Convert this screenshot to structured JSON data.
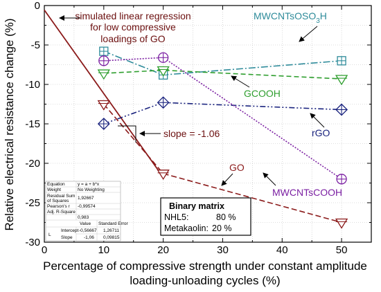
{
  "chart_data": {
    "type": "line",
    "xlabel_line1": "Percentage of compressive strength under constant amplitude",
    "xlabel_line2": "loading-unloading cycles (%)",
    "ylabel": "Relative electrical resistance change (%)",
    "xlim": [
      0,
      55
    ],
    "ylim": [
      -30,
      0
    ],
    "xticks": [
      0,
      10,
      20,
      30,
      40,
      50
    ],
    "yticks": [
      -30,
      -25,
      -20,
      -15,
      -10,
      -5,
      0
    ],
    "ytick_labels": [
      "-30",
      "-25",
      "-20",
      "-15",
      "-10",
      "-5",
      "0"
    ],
    "regression": {
      "label_lines": [
        "simulated linear regression",
        "for low compressive",
        "loadings of GO"
      ],
      "intercept": -0.56667,
      "slope": -1.06,
      "x_range": [
        0,
        20
      ],
      "color": "#8B1A1A",
      "slope_label": "slope = -1.06"
    },
    "series": [
      {
        "name": "MWCNTsOSO3H",
        "label_main": "MWCNTsOSO",
        "label_sub": "3",
        "label_end": "H",
        "color": "#2E8B9A",
        "marker": "square-plus",
        "dash": "10,3,2,3",
        "x": [
          10,
          20,
          50
        ],
        "y": [
          -5.8,
          -8.8,
          -7
        ]
      },
      {
        "name": "GCOOH",
        "label_main": "GCOOH",
        "color": "#2E9E2E",
        "marker": "triangle-down-line",
        "dash": "7,4",
        "x": [
          10,
          20,
          50
        ],
        "y": [
          -8.6,
          -8.2,
          -9.3
        ]
      },
      {
        "name": "rGO",
        "label_main": "rGO",
        "color": "#1A237E",
        "marker": "diamond-plus",
        "dash": "8,3,2,3,2,3",
        "x": [
          10,
          20,
          50
        ],
        "y": [
          -15,
          -12.3,
          -13.2
        ]
      },
      {
        "name": "MWCNTsCOOH",
        "label_main": "MWCNTsCOOH",
        "color": "#7B1FA2",
        "marker": "circle-plus",
        "dash": "2,2",
        "x": [
          10,
          20,
          50
        ],
        "y": [
          -7,
          -6.6,
          -22
        ]
      },
      {
        "name": "GO",
        "label_main": "GO",
        "color": "#8B1A1A",
        "marker": "triangle-down-line",
        "dash": "8,4",
        "x": [
          10,
          20,
          50
        ],
        "y": [
          -12.5,
          -21.3,
          -27.5
        ]
      }
    ],
    "stats_table": {
      "rows": [
        [
          "Equation",
          "y = a + b*x"
        ],
        [
          "Weight",
          "No Weighting"
        ],
        [
          "Residual Sum",
          ""
        ],
        [
          "of Squares",
          "1,92667"
        ],
        [
          "Pearson's r",
          "-0,99574"
        ],
        [
          "Adj. R-Square",
          "0,983"
        ]
      ],
      "col_value": "Value",
      "col_error": "Standard Error",
      "row_label": "L",
      "intercept_label": "Intercept",
      "intercept_value": "-0,56667",
      "intercept_error": "1,26711",
      "slope_label": "Slope",
      "slope_value": "-1,06",
      "slope_error": "0,09815"
    },
    "binary_box": {
      "title": "Binary matrix",
      "line1_label": "NHL5:",
      "line1_value": "80 %",
      "line2_label": "Metakaolin:",
      "line2_value": "20 %"
    }
  }
}
